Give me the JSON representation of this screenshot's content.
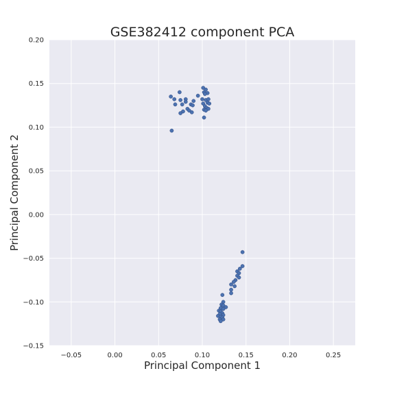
{
  "chart_data": {
    "type": "scatter",
    "title": "GSE382412 component PCA",
    "xlabel": "Principal Component 1",
    "ylabel": "Principal Component 2",
    "xlim": [
      -0.075,
      0.275
    ],
    "ylim": [
      -0.15,
      0.2
    ],
    "xticks": [
      -0.05,
      0.0,
      0.05,
      0.1,
      0.15,
      0.2,
      0.25
    ],
    "xtick_labels": [
      "−0.05",
      "0.00",
      "0.05",
      "0.10",
      "0.15",
      "0.20",
      "0.25"
    ],
    "yticks": [
      -0.15,
      -0.1,
      -0.05,
      0.0,
      0.05,
      0.1,
      0.15,
      0.2
    ],
    "ytick_labels": [
      "−0.15",
      "−0.10",
      "−0.05",
      "0.00",
      "0.05",
      "0.10",
      "0.15",
      "0.20"
    ],
    "grid": true,
    "colors": {
      "background": "#eaeaf2",
      "grid": "#ffffff",
      "marker": "#4c72b0",
      "marker_edge": "#2f4a80"
    },
    "points": [
      {
        "x": 0.064,
        "y": 0.135
      },
      {
        "x": 0.068,
        "y": 0.132
      },
      {
        "x": 0.074,
        "y": 0.14
      },
      {
        "x": 0.075,
        "y": 0.131
      },
      {
        "x": 0.069,
        "y": 0.126
      },
      {
        "x": 0.077,
        "y": 0.126
      },
      {
        "x": 0.081,
        "y": 0.132
      },
      {
        "x": 0.081,
        "y": 0.129
      },
      {
        "x": 0.087,
        "y": 0.126
      },
      {
        "x": 0.09,
        "y": 0.13
      },
      {
        "x": 0.089,
        "y": 0.125
      },
      {
        "x": 0.083,
        "y": 0.121
      },
      {
        "x": 0.085,
        "y": 0.119
      },
      {
        "x": 0.078,
        "y": 0.118
      },
      {
        "x": 0.075,
        "y": 0.116
      },
      {
        "x": 0.088,
        "y": 0.117
      },
      {
        "x": 0.065,
        "y": 0.096
      },
      {
        "x": 0.095,
        "y": 0.136
      },
      {
        "x": 0.101,
        "y": 0.145
      },
      {
        "x": 0.102,
        "y": 0.14
      },
      {
        "x": 0.104,
        "y": 0.143
      },
      {
        "x": 0.106,
        "y": 0.139
      },
      {
        "x": 0.103,
        "y": 0.138
      },
      {
        "x": 0.1,
        "y": 0.132
      },
      {
        "x": 0.104,
        "y": 0.131
      },
      {
        "x": 0.107,
        "y": 0.132
      },
      {
        "x": 0.101,
        "y": 0.127
      },
      {
        "x": 0.106,
        "y": 0.128
      },
      {
        "x": 0.108,
        "y": 0.127
      },
      {
        "x": 0.103,
        "y": 0.124
      },
      {
        "x": 0.105,
        "y": 0.122
      },
      {
        "x": 0.107,
        "y": 0.121
      },
      {
        "x": 0.102,
        "y": 0.12
      },
      {
        "x": 0.104,
        "y": 0.119
      },
      {
        "x": 0.102,
        "y": 0.111
      },
      {
        "x": 0.146,
        "y": -0.043
      },
      {
        "x": 0.146,
        "y": -0.059
      },
      {
        "x": 0.143,
        "y": -0.062
      },
      {
        "x": 0.14,
        "y": -0.065
      },
      {
        "x": 0.142,
        "y": -0.067
      },
      {
        "x": 0.14,
        "y": -0.07
      },
      {
        "x": 0.142,
        "y": -0.072
      },
      {
        "x": 0.138,
        "y": -0.075
      },
      {
        "x": 0.136,
        "y": -0.077
      },
      {
        "x": 0.133,
        "y": -0.08
      },
      {
        "x": 0.137,
        "y": -0.082
      },
      {
        "x": 0.133,
        "y": -0.086
      },
      {
        "x": 0.133,
        "y": -0.09
      },
      {
        "x": 0.123,
        "y": -0.092
      },
      {
        "x": 0.124,
        "y": -0.1
      },
      {
        "x": 0.122,
        "y": -0.103
      },
      {
        "x": 0.124,
        "y": -0.104
      },
      {
        "x": 0.127,
        "y": -0.106
      },
      {
        "x": 0.121,
        "y": -0.107
      },
      {
        "x": 0.124,
        "y": -0.108
      },
      {
        "x": 0.119,
        "y": -0.11
      },
      {
        "x": 0.121,
        "y": -0.111
      },
      {
        "x": 0.123,
        "y": -0.113
      },
      {
        "x": 0.12,
        "y": -0.114
      },
      {
        "x": 0.124,
        "y": -0.115
      },
      {
        "x": 0.118,
        "y": -0.116
      },
      {
        "x": 0.121,
        "y": -0.117
      },
      {
        "x": 0.123,
        "y": -0.118
      },
      {
        "x": 0.12,
        "y": -0.12
      },
      {
        "x": 0.124,
        "y": -0.12
      },
      {
        "x": 0.121,
        "y": -0.122
      }
    ]
  }
}
